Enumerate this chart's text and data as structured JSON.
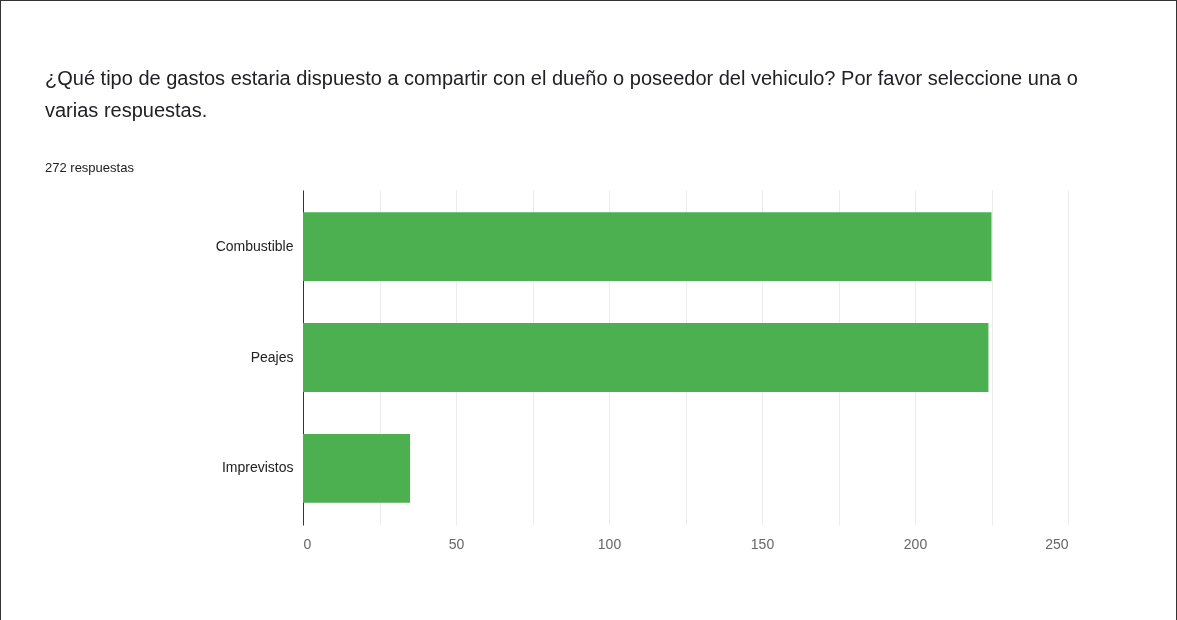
{
  "chart_data": {
    "type": "bar",
    "orientation": "horizontal",
    "title": "¿Qué tipo de gastos estaria dispuesto a compartir con el dueño o poseedor del vehiculo? Por favor seleccione una o varias respuestas.",
    "subtitle": "272 respuestas",
    "categories": [
      "Combustible",
      "Peajes",
      "Imprevistos"
    ],
    "values": [
      225,
      224,
      35
    ],
    "color": "#4caf50",
    "xlim": [
      0,
      250
    ],
    "xticks": [
      0,
      {
        "value": 25,
        "label": null
      },
      50,
      {
        "value": 75,
        "label": null
      },
      100,
      {
        "value": 125,
        "label": null
      },
      150,
      {
        "value": 175,
        "label": null
      },
      200,
      {
        "value": 225,
        "label": null
      },
      250
    ],
    "grid": "x"
  }
}
